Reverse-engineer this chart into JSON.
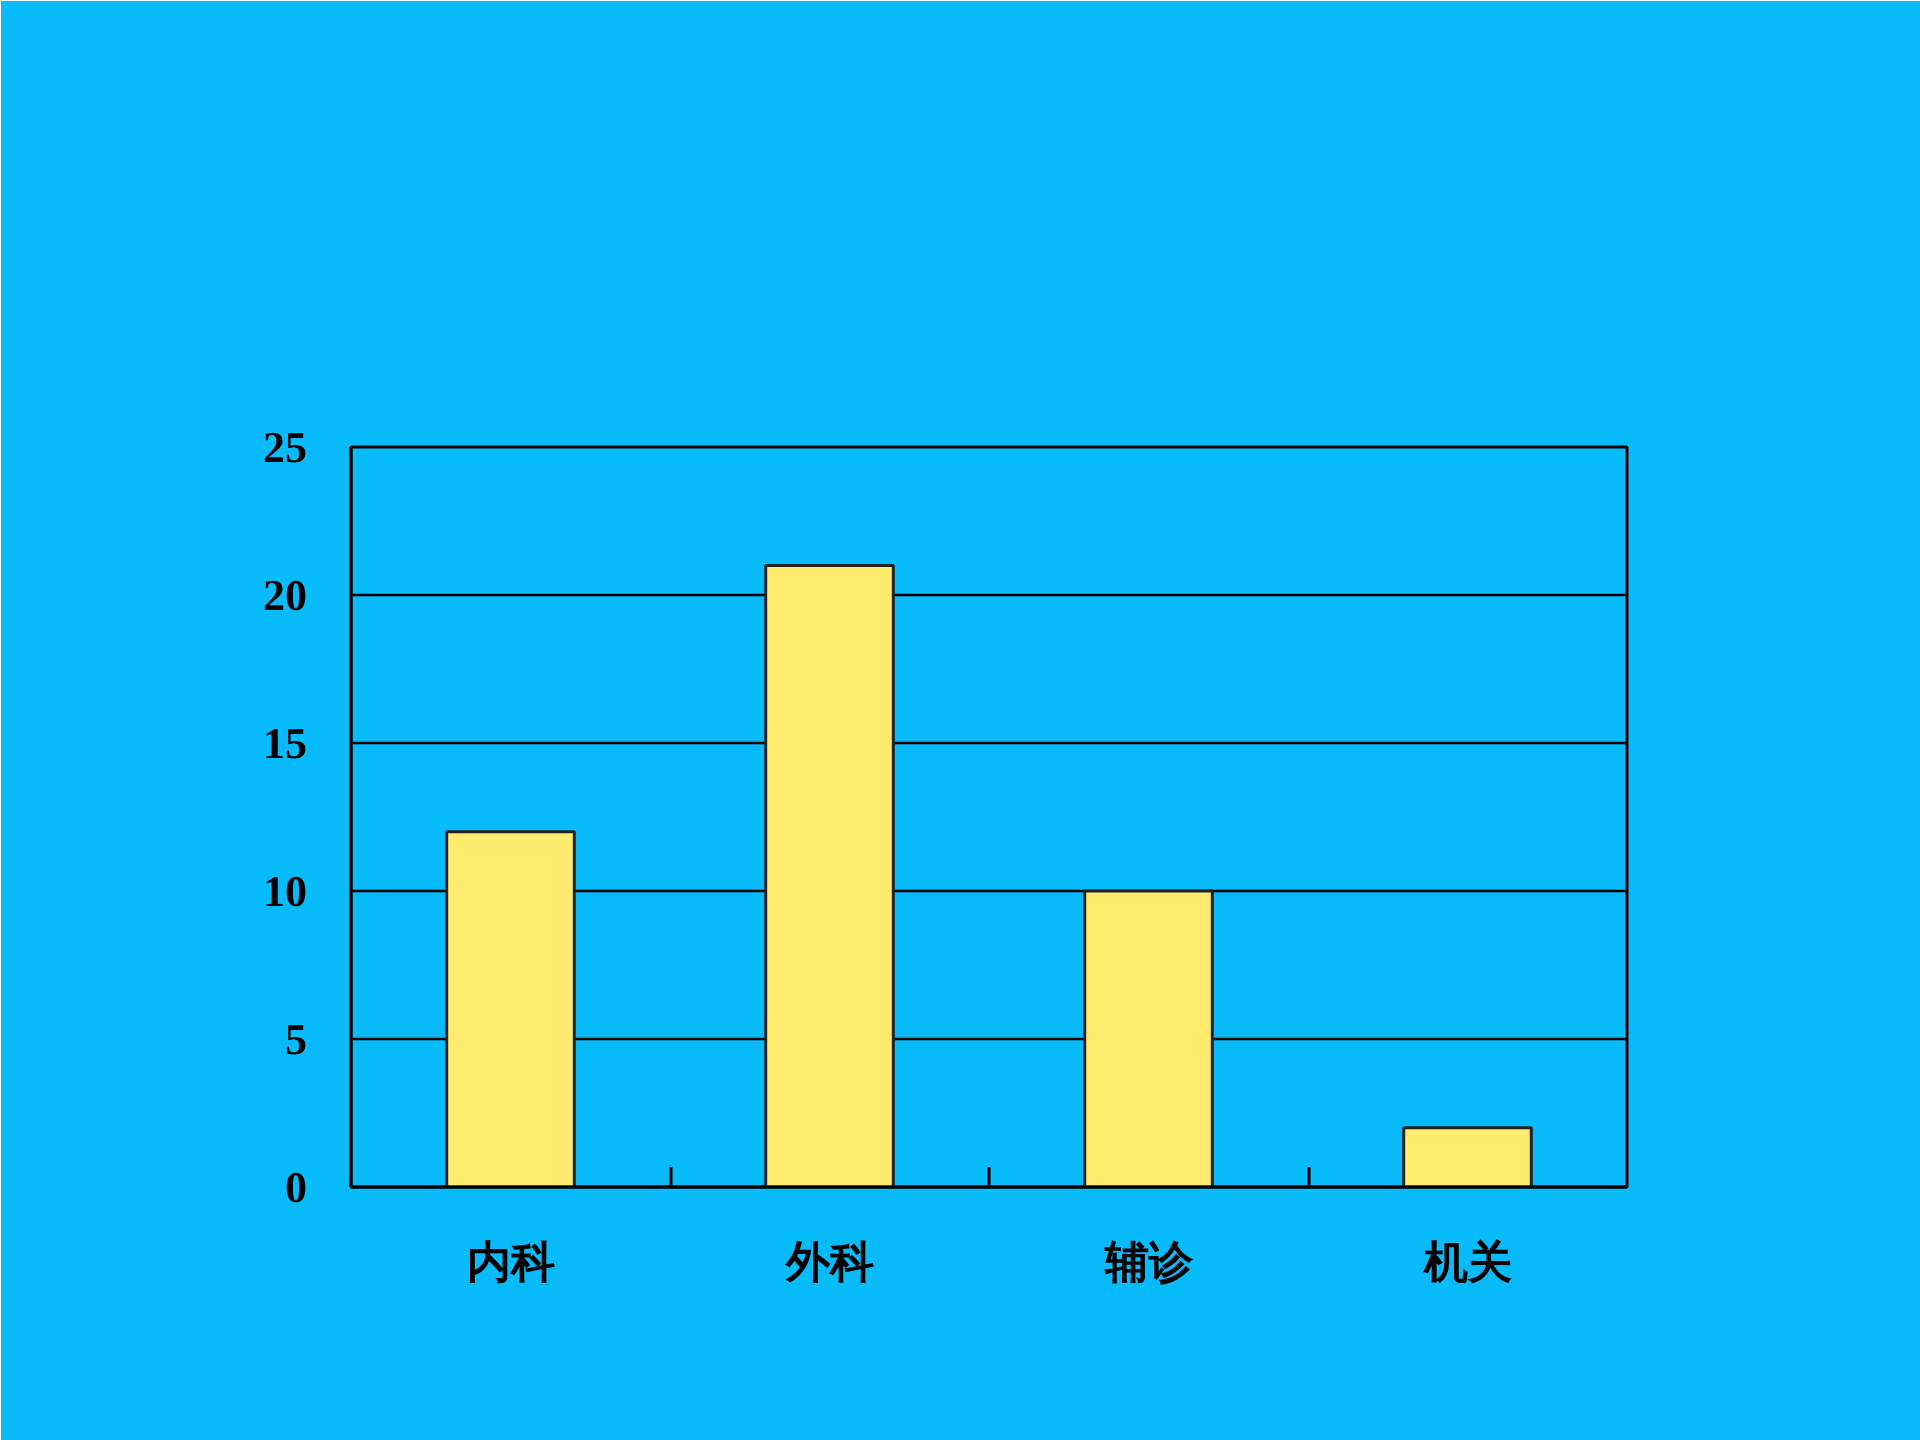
{
  "chart_data": {
    "type": "bar",
    "categories": [
      "内科",
      "外科",
      "辅诊",
      "机关"
    ],
    "values": [
      12,
      21,
      10,
      2
    ],
    "color": "#ffec6e",
    "ylim": [
      0,
      25
    ],
    "yticks": [
      0,
      5,
      10,
      15,
      20,
      25
    ],
    "grid": "y"
  }
}
